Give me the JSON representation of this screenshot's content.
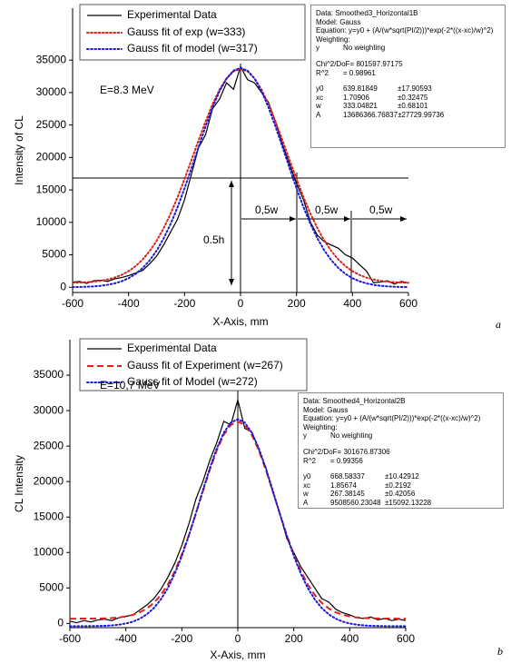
{
  "chart_data": [
    {
      "type": "line",
      "x_label": "X-Axis, mm",
      "y_label": "Intensity of CL",
      "x": [
        -600,
        -575,
        -550,
        -525,
        -500,
        -475,
        -450,
        -425,
        -400,
        -375,
        -350,
        -325,
        -300,
        -275,
        -250,
        -225,
        -200,
        -175,
        -150,
        -125,
        -100,
        -75,
        -50,
        -25,
        0,
        25,
        50,
        75,
        100,
        125,
        150,
        175,
        200,
        225,
        250,
        275,
        300,
        325,
        350,
        375,
        400,
        425,
        450,
        475,
        500,
        525,
        550,
        575,
        600
      ],
      "series": [
        {
          "name": "Experimental Data",
          "color": "#000000",
          "style": "solid",
          "values": [
            800,
            900,
            600,
            1000,
            1100,
            900,
            1300,
            1500,
            1800,
            2200,
            2600,
            3600,
            4800,
            6500,
            8500,
            10500,
            13500,
            17500,
            21500,
            23500,
            27500,
            29000,
            31500,
            30500,
            34000,
            32000,
            31500,
            30000,
            28500,
            25500,
            22000,
            19000,
            16000,
            13500,
            10000,
            8000,
            7000,
            6500,
            6000,
            5000,
            4500,
            3500,
            2500,
            700,
            800,
            1000,
            500,
            900,
            700
          ]
        },
        {
          "name": "Gauss fit of exp (w=333)",
          "color": "#e0201b",
          "style": "dotted",
          "values": [
            690,
            726,
            782,
            868,
            1003,
            1204,
            1495,
            1911,
            2481,
            3254,
            4263,
            5550,
            7151,
            9075,
            11329,
            13883,
            16681,
            19635,
            22631,
            25535,
            28195,
            30459,
            32185,
            33270,
            33640,
            33270,
            32185,
            30459,
            28195,
            25535,
            22631,
            19635,
            16681,
            13883,
            11329,
            9075,
            7151,
            5550,
            4263,
            3254,
            2481,
            1911,
            1495,
            1204,
            1003,
            868,
            782,
            726,
            690
          ]
        },
        {
          "name": "Gauss fit of model (w=317)",
          "color": "#1a1adb",
          "style": "dotted",
          "values": [
            27,
            47,
            81,
            139,
            233,
            379,
            602,
            926,
            1399,
            2058,
            2951,
            4130,
            5638,
            7504,
            9745,
            12340,
            15247,
            18374,
            21598,
            24765,
            27702,
            30217,
            32157,
            33381,
            33800,
            33381,
            32157,
            30217,
            27702,
            24765,
            21598,
            18374,
            15247,
            12340,
            9745,
            7504,
            5638,
            4130,
            2951,
            2058,
            1399,
            926,
            602,
            379,
            233,
            139,
            81,
            47,
            27
          ]
        }
      ],
      "xlim": [
        -600,
        600
      ],
      "ylim": [
        -800,
        43000
      ],
      "xticks": [
        -600,
        -400,
        -200,
        0,
        200,
        400,
        600
      ],
      "yticks": [
        0,
        5000,
        10000,
        15000,
        20000,
        25000,
        30000,
        35000
      ],
      "annotations": [
        "E=8.3 MeV",
        "0.5h",
        "0,5w",
        "0,5w",
        "0,5w"
      ],
      "panel_label": "a",
      "fit_box": [
        [
          [
            "Data: Smoothed3_Horizontal1B"
          ],
          [
            "Model: Gauss"
          ],
          [
            "Equation: y=y0 + (A/(w*sqrt(PI/2)))*exp(-2*((x-xc)/w)^2)"
          ],
          [
            "Weighting:"
          ],
          [
            "y",
            "No weighting"
          ]
        ],
        [
          [
            "Chi^2/DoF",
            "= 801597.97175"
          ],
          [
            "R^2",
            "= 0.98961"
          ]
        ],
        [
          [
            "y0",
            "639.81849",
            "±17.90593"
          ],
          [
            "xc",
            "1.70906",
            "±0.32475"
          ],
          [
            "w",
            "333.04821",
            "±0.68101"
          ],
          [
            "A",
            "13686366.76837",
            "±27729.99736"
          ]
        ]
      ]
    },
    {
      "type": "line",
      "x_label": "X-Axis, mm",
      "y_label": "CL Intensity",
      "x": [
        -600,
        -575,
        -550,
        -525,
        -500,
        -475,
        -450,
        -425,
        -400,
        -375,
        -350,
        -325,
        -300,
        -275,
        -250,
        -225,
        -200,
        -175,
        -150,
        -125,
        -100,
        -75,
        -50,
        -25,
        0,
        25,
        50,
        75,
        100,
        125,
        150,
        175,
        200,
        225,
        250,
        275,
        300,
        325,
        350,
        375,
        400,
        425,
        450,
        475,
        500,
        525,
        550,
        575,
        600
      ],
      "series": [
        {
          "name": "Experimental Data",
          "color": "#000000",
          "style": "solid",
          "values": [
            300,
            100,
            400,
            200,
            500,
            600,
            400,
            800,
            1000,
            1200,
            1900,
            2600,
            3500,
            4800,
            6500,
            8500,
            11000,
            14000,
            17500,
            20000,
            23000,
            25500,
            28500,
            28000,
            31500,
            27500,
            27000,
            24500,
            22000,
            18500,
            15500,
            12000,
            10000,
            8000,
            6500,
            5000,
            3500,
            3000,
            2000,
            1500,
            1200,
            800,
            700,
            900,
            500,
            700,
            400,
            600,
            400
          ]
        },
        {
          "name": "Gauss fit of Experiment (w=267)",
          "color": "#e0201b",
          "style": "dashed",
          "values": [
            670,
            672,
            675,
            680,
            694,
            719,
            764,
            844,
            980,
            1208,
            1564,
            2103,
            2893,
            4000,
            5484,
            7385,
            9721,
            12442,
            15459,
            18603,
            21666,
            24410,
            26587,
            27985,
            28469,
            27985,
            26587,
            24410,
            21666,
            18603,
            15459,
            12442,
            9721,
            7385,
            5484,
            4000,
            2893,
            2103,
            1564,
            1208,
            980,
            844,
            764,
            719,
            694,
            680,
            675,
            672,
            670
          ]
        },
        {
          "name": "Gauss fit of Model (w=272)",
          "color": "#1a1adb",
          "style": "dotted",
          "values": [
            -400,
            -397,
            -391,
            -382,
            -365,
            -336,
            -277,
            -178,
            -15,
            251,
            666,
            1282,
            2164,
            3381,
            4990,
            7031,
            9502,
            12357,
            15494,
            18741,
            21885,
            24683,
            26890,
            28309,
            28800,
            28309,
            26890,
            24683,
            21885,
            18741,
            15494,
            12357,
            9502,
            7031,
            4990,
            3381,
            2164,
            1282,
            666,
            251,
            -15,
            -178,
            -277,
            -336,
            -365,
            -382,
            -391,
            -397,
            -400
          ]
        }
      ],
      "xlim": [
        -600,
        600
      ],
      "ylim": [
        -600,
        40000
      ],
      "xticks": [
        -600,
        -400,
        -200,
        0,
        200,
        400,
        600
      ],
      "yticks": [
        0,
        5000,
        10000,
        15000,
        20000,
        25000,
        30000,
        35000
      ],
      "annotations": [
        "E=10,7 MeV"
      ],
      "panel_label": "b",
      "fit_box": [
        [
          [
            "Data: Smoothed4_Horizontal2B"
          ],
          [
            "Model: Gauss"
          ],
          [
            "Equation: y=y0 + (A/(w*sqrt(PI/2)))*exp(-2*((x-xc)/w)^2)"
          ],
          [
            "Weighting:"
          ],
          [
            "y",
            "No weighting"
          ]
        ],
        [
          [
            "Chi^2/DoF",
            "= 301676.87306"
          ],
          [
            "R^2",
            "= 0.99356"
          ]
        ],
        [
          [
            "y0",
            "668.58337",
            "±10.42912"
          ],
          [
            "xc",
            "1.85674",
            "±0.2192"
          ],
          [
            "w",
            "267.38145",
            "±0.42056"
          ],
          [
            "A",
            "9508560.23048",
            "±15092.13228"
          ]
        ]
      ]
    }
  ]
}
